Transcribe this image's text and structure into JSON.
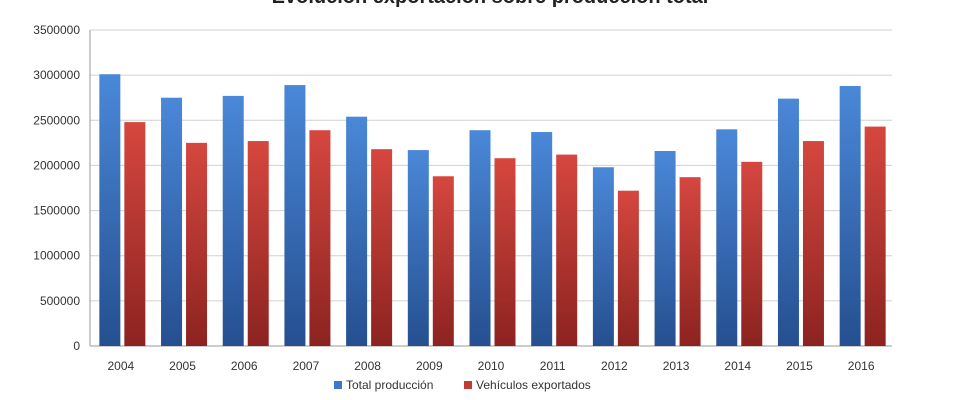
{
  "chart_data": {
    "type": "bar",
    "title": "Evolución exportación sobre producción total",
    "categories": [
      "2004",
      "2005",
      "2006",
      "2007",
      "2008",
      "2009",
      "2010",
      "2011",
      "2012",
      "2013",
      "2014",
      "2015",
      "2016"
    ],
    "series": [
      {
        "name": "Total producción",
        "color": "#3e78c8",
        "values": [
          3010000,
          2750000,
          2770000,
          2890000,
          2540000,
          2170000,
          2390000,
          2370000,
          1980000,
          2160000,
          2400000,
          2740000,
          2880000
        ]
      },
      {
        "name": "Vehículos exportados",
        "color": "#c23a36",
        "values": [
          2480000,
          2250000,
          2270000,
          2390000,
          2180000,
          1880000,
          2080000,
          2120000,
          1720000,
          1870000,
          2040000,
          2270000,
          2430000
        ]
      }
    ],
    "ylim": [
      0,
      3500000
    ],
    "yticks": [
      0,
      500000,
      1000000,
      1500000,
      2000000,
      2500000,
      3000000,
      3500000
    ],
    "grid": true,
    "legend_position": "bottom"
  }
}
